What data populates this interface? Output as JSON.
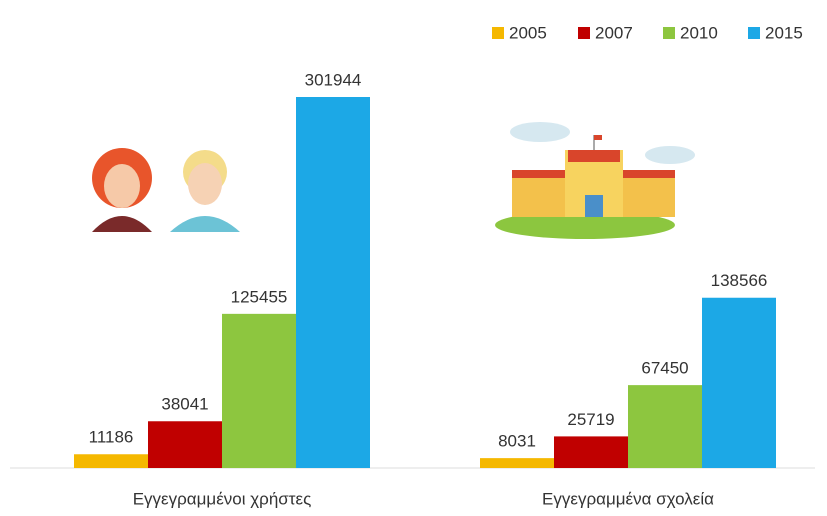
{
  "chart_data": {
    "type": "bar",
    "categories": [
      "Εγγεγραμμένοι χρήστες",
      "Εγγεγραμμένα σχολεία"
    ],
    "series": [
      {
        "name": "2005",
        "color": "#f5b800",
        "values": [
          11186,
          8031
        ]
      },
      {
        "name": "2007",
        "color": "#c00000",
        "values": [
          38041,
          25719
        ]
      },
      {
        "name": "2010",
        "color": "#8dc63f",
        "values": [
          125455,
          67450
        ]
      },
      {
        "name": "2015",
        "color": "#1ca8e6",
        "values": [
          301944,
          138566
        ]
      }
    ]
  }
}
